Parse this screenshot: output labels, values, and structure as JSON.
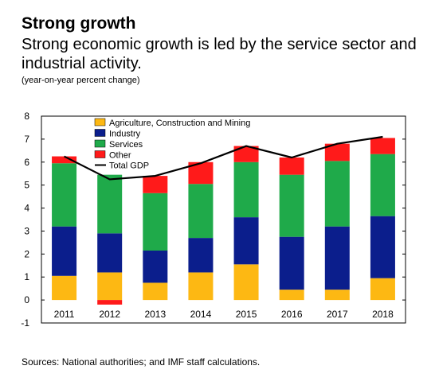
{
  "header": {
    "title": "Strong growth",
    "subtitle": "Strong economic growth is led by the service sector and industrial activity.",
    "units": "(year-on-year percent change)"
  },
  "footer": {
    "source": "Sources: National authorities; and IMF staff calculations."
  },
  "chart_data": {
    "type": "bar",
    "stacked": true,
    "categories": [
      "2011",
      "2012",
      "2013",
      "2014",
      "2015",
      "2016",
      "2017",
      "2018"
    ],
    "ylim": [
      -1,
      8
    ],
    "yticks": [
      "8",
      "7",
      "6",
      "5",
      "4",
      "3",
      "2",
      "1",
      "0",
      "-1"
    ],
    "grid": false,
    "legend_position": "top-left",
    "series": [
      {
        "name": "Agriculture, Construction and Mining",
        "color": "#FDB813",
        "values": [
          1.05,
          1.2,
          0.75,
          1.2,
          1.55,
          0.45,
          0.45,
          0.95
        ]
      },
      {
        "name": "Industry",
        "color": "#0B1E8C",
        "values": [
          2.15,
          1.7,
          1.4,
          1.5,
          2.05,
          2.3,
          2.75,
          2.7
        ]
      },
      {
        "name": "Services",
        "color": "#1FAA4A",
        "values": [
          2.75,
          2.55,
          2.5,
          2.35,
          2.4,
          2.7,
          2.85,
          2.7
        ]
      },
      {
        "name": "Other",
        "color": "#FF1A1A",
        "values": [
          0.3,
          -0.2,
          0.75,
          0.95,
          0.7,
          0.75,
          0.75,
          0.7
        ]
      }
    ],
    "line": {
      "name": "Total GDP",
      "color": "#000000",
      "values": [
        6.25,
        5.25,
        5.4,
        5.95,
        6.7,
        6.2,
        6.8,
        7.1
      ]
    }
  }
}
